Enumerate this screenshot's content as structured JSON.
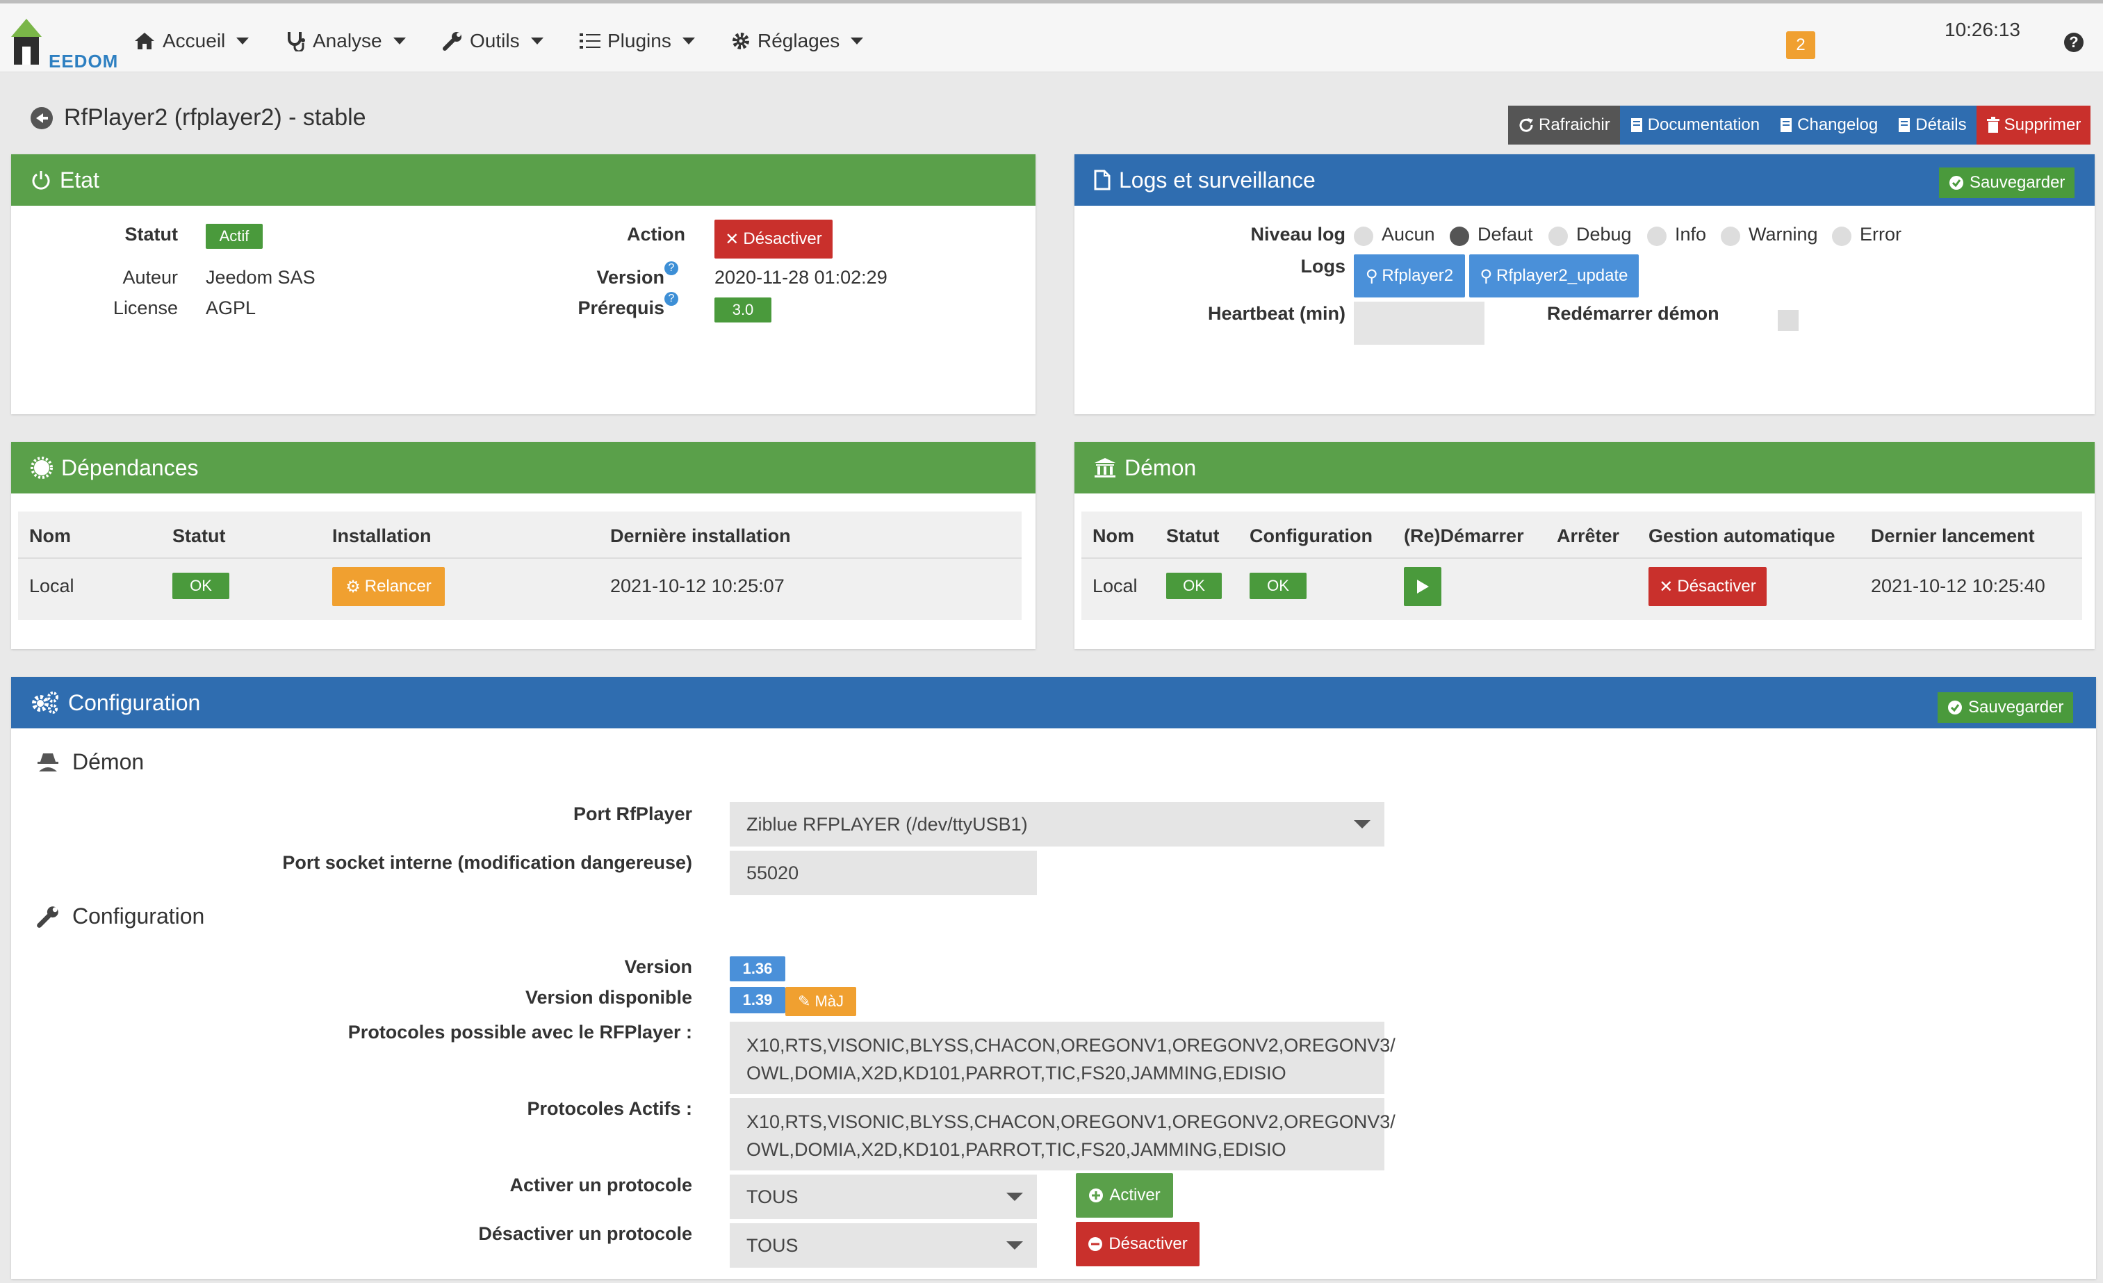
{
  "nav": {
    "logo_text": "EEDOM",
    "items": [
      {
        "label": "Accueil",
        "icon": "home-icon"
      },
      {
        "label": "Analyse",
        "icon": "stethoscope-icon"
      },
      {
        "label": "Outils",
        "icon": "wrench-icon"
      },
      {
        "label": "Plugins",
        "icon": "tasks-icon"
      },
      {
        "label": "Réglages",
        "icon": "cogs-icon"
      }
    ],
    "notification_count": "2",
    "clock": "10:26:13",
    "help": "?"
  },
  "page": {
    "title": "RfPlayer2 (rfplayer2) - stable",
    "buttons": {
      "refresh": "Rafraichir",
      "documentation": "Documentation",
      "changelog": "Changelog",
      "details": "Détails",
      "delete": "Supprimer"
    }
  },
  "etat": {
    "title": "Etat",
    "statut_label": "Statut",
    "statut_value": "Actif",
    "auteur_label": "Auteur",
    "auteur_value": "Jeedom SAS",
    "license_label": "License",
    "license_value": "AGPL",
    "action_label": "Action",
    "action_button": "Désactiver",
    "version_label": "Version",
    "version_value": "2020-11-28 01:02:29",
    "prerequis_label": "Prérequis",
    "prerequis_value": "3.0"
  },
  "logs": {
    "title": "Logs et surveillance",
    "save": "Sauvegarder",
    "niveau_label": "Niveau log",
    "levels": [
      "Aucun",
      "Defaut",
      "Debug",
      "Info",
      "Warning",
      "Error"
    ],
    "selected_level": "Defaut",
    "logs_label": "Logs",
    "log_buttons": [
      "Rfplayer2",
      "Rfplayer2_update"
    ],
    "heartbeat_label": "Heartbeat (min)",
    "heartbeat_value": "",
    "restart_label": "Redémarrer démon"
  },
  "deps": {
    "title": "Dépendances",
    "headers": [
      "Nom",
      "Statut",
      "Installation",
      "Dernière installation"
    ],
    "row": {
      "nom": "Local",
      "statut": "OK",
      "installation": "Relancer",
      "derniere": "2021-10-12 10:25:07"
    }
  },
  "demon": {
    "title": "Démon",
    "headers": [
      "Nom",
      "Statut",
      "Configuration",
      "(Re)Démarrer",
      "Arrêter",
      "Gestion automatique",
      "Dernier lancement"
    ],
    "row": {
      "nom": "Local",
      "statut": "OK",
      "configuration": "OK",
      "gestion": "Désactiver",
      "dernier": "2021-10-12 10:25:40"
    }
  },
  "config": {
    "title": "Configuration",
    "save": "Sauvegarder",
    "demon_heading": "Démon",
    "port_label": "Port RfPlayer",
    "port_value": "Ziblue RFPLAYER (/dev/ttyUSB1)",
    "socket_label": "Port socket interne (modification dangereuse)",
    "socket_value": "55020",
    "config_heading": "Configuration",
    "version_label": "Version",
    "version_value": "1.36",
    "version_dispo_label": "Version disponible",
    "version_dispo_value": "1.39",
    "maj_button": "MàJ",
    "protocoles_possible_label": "Protocoles possible avec le RFPlayer :",
    "protocoles_possible_line1": "X10,RTS,VISONIC,BLYSS,CHACON,OREGONV1,OREGONV2,OREGONV3/",
    "protocoles_possible_line2": "OWL,DOMIA,X2D,KD101,PARROT,TIC,FS20,JAMMING,EDISIO",
    "protocoles_actifs_label": "Protocoles Actifs :",
    "protocoles_actifs_line1": "X10,RTS,VISONIC,BLYSS,CHACON,OREGONV1,OREGONV2,OREGONV3/",
    "protocoles_actifs_line2": "OWL,DOMIA,X2D,KD101,PARROT,TIC,FS20,JAMMING,EDISIO",
    "activer_label": "Activer un protocole",
    "activer_value": "TOUS",
    "activer_button": "Activer",
    "desactiver_label": "Désactiver un protocole",
    "desactiver_value": "TOUS",
    "desactiver_button": "Désactiver"
  },
  "colors": {
    "green": "#5aa04a",
    "blue": "#2f6db0",
    "red": "#c9302c",
    "orange": "#f0a030"
  }
}
